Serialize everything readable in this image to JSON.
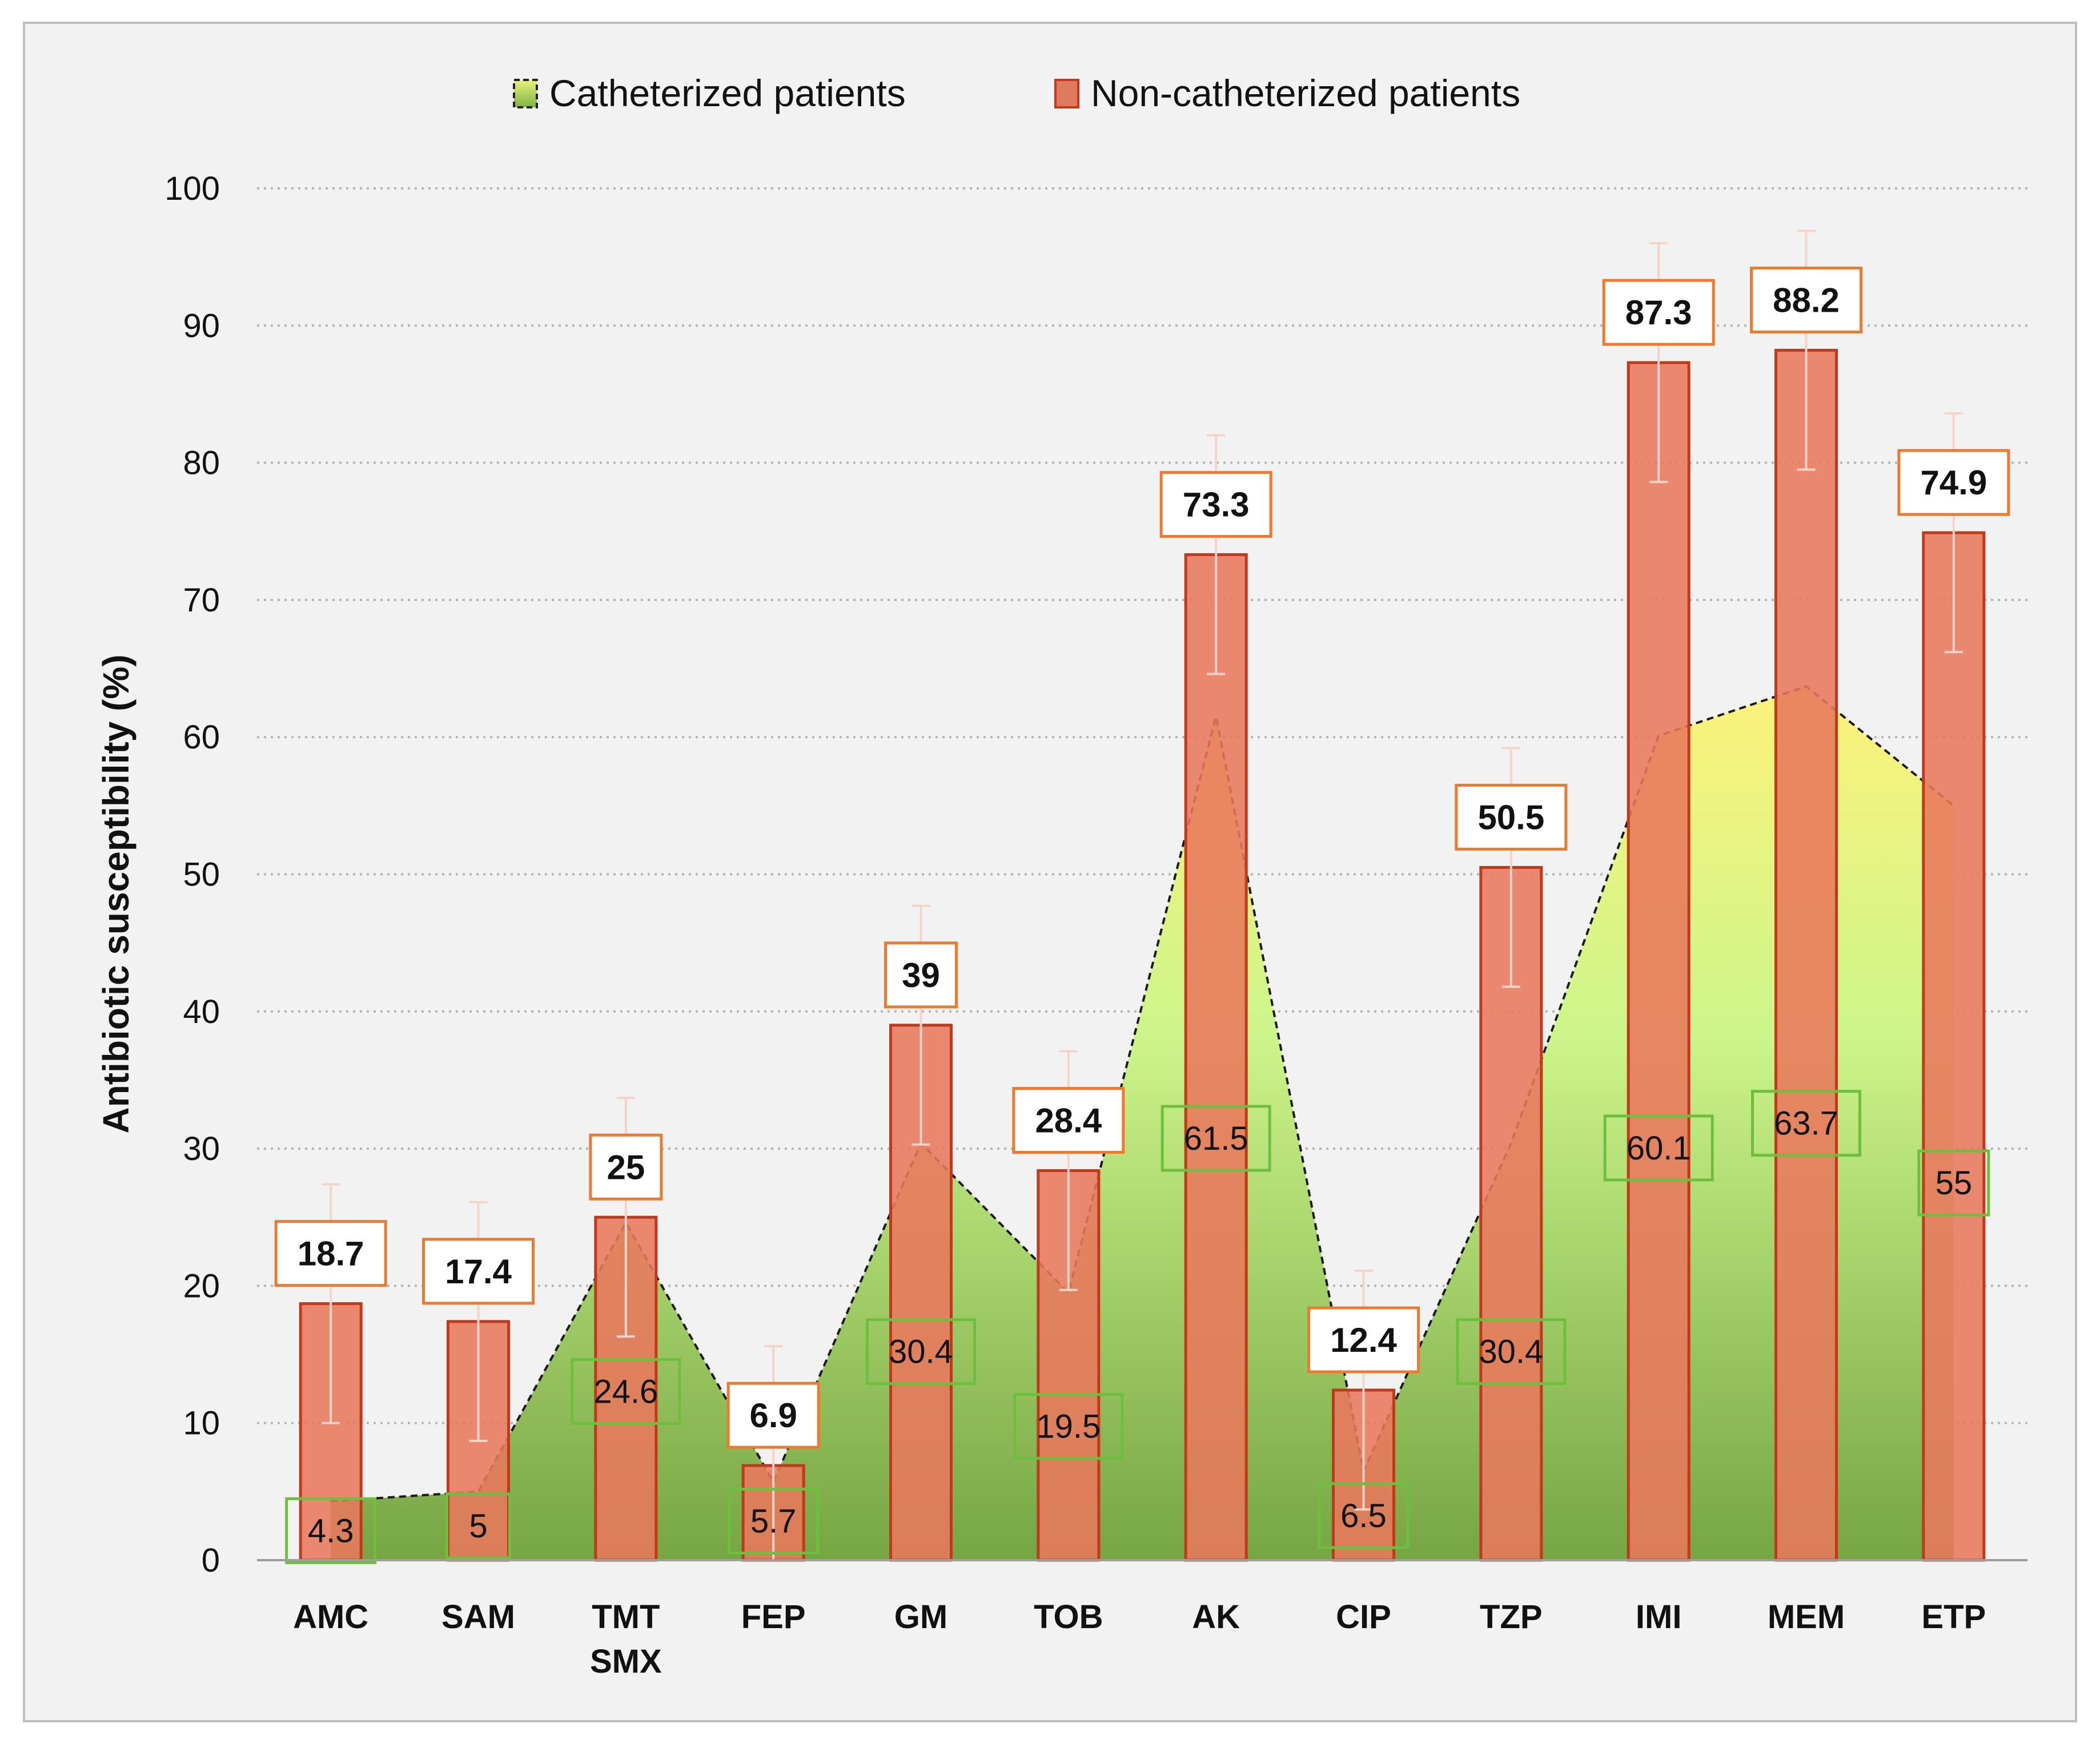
{
  "chart_data": {
    "type": "bar",
    "title": "",
    "xlabel": "",
    "ylabel": "Antibiotic susceptibility (%)",
    "ylim": [
      0,
      100
    ],
    "yticks": [
      "0",
      "10",
      "20",
      "30",
      "40",
      "50",
      "60",
      "70",
      "80",
      "90",
      "100"
    ],
    "grid": true,
    "legend_position": "top-center",
    "categories": [
      [
        "AMC"
      ],
      [
        "SAM"
      ],
      [
        "TMT",
        "SMX"
      ],
      [
        "FEP"
      ],
      [
        "GM"
      ],
      [
        "TOB"
      ],
      [
        "AK"
      ],
      [
        "CIP"
      ],
      [
        "TZP"
      ],
      [
        "IMI"
      ],
      [
        "MEM"
      ],
      [
        "ETP"
      ]
    ],
    "series": [
      {
        "name": "Catheterized patients",
        "kind": "area",
        "values": [
          4.3,
          5,
          24.6,
          5.7,
          30.4,
          19.5,
          61.5,
          6.5,
          30.4,
          60.1,
          63.7,
          55
        ],
        "labels": [
          "4.3",
          "5",
          "24.6",
          "5.7",
          "30.4",
          "19.5",
          "61.5",
          "6.5",
          "30.4",
          "60.1",
          "63.7",
          "55"
        ],
        "color": "#7cb342"
      },
      {
        "name": "Non-catheterized patients",
        "kind": "bar",
        "values": [
          18.7,
          17.4,
          25,
          6.9,
          39,
          28.4,
          73.3,
          12.4,
          50.5,
          87.3,
          88.2,
          74.9
        ],
        "labels": [
          "18.7",
          "17.4",
          "25",
          "6.9",
          "39",
          "28.4",
          "73.3",
          "12.4",
          "50.5",
          "87.3",
          "88.2",
          "74.9"
        ],
        "error": [
          8.7,
          8.7,
          8.7,
          8.7,
          8.7,
          8.7,
          8.7,
          8.7,
          8.7,
          8.7,
          8.7,
          8.7
        ],
        "color": "#e8775c"
      }
    ]
  }
}
